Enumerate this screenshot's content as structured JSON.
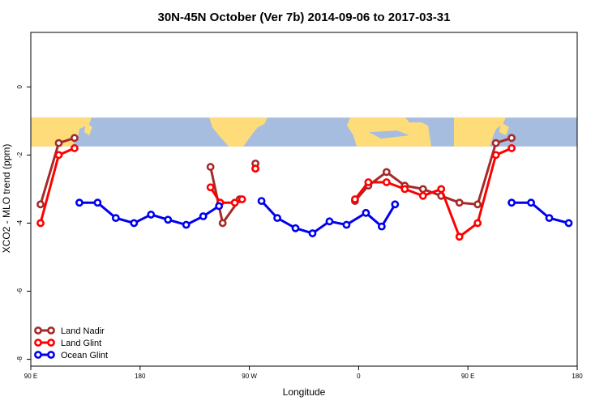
{
  "chart_data": {
    "type": "line",
    "title": "30N-45N October (Ver 7b)   2014-09-06 to 2017-03-31",
    "xlabel": "Longitude",
    "ylabel": "XCO2 - MLO trend (ppm)",
    "xticks": [
      {
        "value": 90,
        "label": "90 E"
      },
      {
        "value": 180,
        "label": "180"
      },
      {
        "value": 270,
        "label": "90 W"
      },
      {
        "value": 360,
        "label": "0"
      },
      {
        "value": 450,
        "label": "90 E"
      },
      {
        "value": 540,
        "label": "180"
      }
    ],
    "yticks": [
      {
        "value": 0,
        "label": "0"
      },
      {
        "value": -2,
        "label": "-2"
      },
      {
        "value": -4,
        "label": "-4"
      },
      {
        "value": -6,
        "label": "-6"
      },
      {
        "value": -8,
        "label": "-8"
      }
    ],
    "xlim": [
      90,
      540
    ],
    "ylim": [
      -8.2,
      1.6
    ],
    "map_band_y": [
      -1.75,
      -0.9
    ],
    "legend_position": "bottom-left",
    "grid": false,
    "series": [
      {
        "name": "Land Nadir",
        "color": "#a52a2a",
        "segments": [
          [
            [
              98,
              -3.45
            ],
            [
              113,
              -1.65
            ],
            [
              126,
              -1.5
            ]
          ],
          [
            [
              238,
              -2.35
            ],
            [
              248,
              -4.0
            ],
            [
              262,
              -3.3
            ]
          ],
          [
            [
              275,
              -2.25
            ]
          ],
          [
            [
              357,
              -3.35
            ],
            [
              368,
              -2.9
            ],
            [
              383,
              -2.5
            ],
            [
              398,
              -2.9
            ],
            [
              413,
              -3.0
            ],
            [
              428,
              -3.2
            ],
            [
              443,
              -3.4
            ],
            [
              458,
              -3.45
            ],
            [
              473,
              -1.65
            ],
            [
              486,
              -1.5
            ]
          ]
        ]
      },
      {
        "name": "Land Glint",
        "color": "#ff0000",
        "segments": [
          [
            [
              98,
              -4.0
            ],
            [
              113,
              -2.0
            ],
            [
              126,
              -1.8
            ]
          ],
          [
            [
              238,
              -2.95
            ],
            [
              246,
              -3.4
            ],
            [
              258,
              -3.4
            ],
            [
              264,
              -3.3
            ]
          ],
          [
            [
              275,
              -2.4
            ],
            [
              275,
              -2.4
            ]
          ],
          [
            [
              357,
              -3.3
            ],
            [
              368,
              -2.8
            ],
            [
              383,
              -2.8
            ],
            [
              398,
              -3.0
            ],
            [
              413,
              -3.2
            ],
            [
              428,
              -3.0
            ],
            [
              443,
              -4.4
            ],
            [
              458,
              -4.0
            ],
            [
              473,
              -2.0
            ],
            [
              486,
              -1.8
            ]
          ]
        ]
      },
      {
        "name": "Ocean Glint",
        "color": "#0000ee",
        "segments": [
          [
            [
              130,
              -3.4
            ],
            [
              145,
              -3.4
            ],
            [
              160,
              -3.85
            ],
            [
              175,
              -4.0
            ],
            [
              189,
              -3.75
            ],
            [
              203,
              -3.9
            ],
            [
              218,
              -4.05
            ],
            [
              232,
              -3.8
            ],
            [
              245,
              -3.5
            ]
          ],
          [
            [
              280,
              -3.35
            ],
            [
              293,
              -3.85
            ],
            [
              308,
              -4.15
            ],
            [
              322,
              -4.3
            ],
            [
              336,
              -3.95
            ],
            [
              350,
              -4.05
            ],
            [
              366,
              -3.7
            ],
            [
              379,
              -4.1
            ],
            [
              390,
              -3.45
            ]
          ],
          [
            [
              486,
              -3.4
            ],
            [
              502,
              -3.4
            ],
            [
              517,
              -3.85
            ],
            [
              533,
              -4.0
            ]
          ]
        ]
      }
    ]
  }
}
